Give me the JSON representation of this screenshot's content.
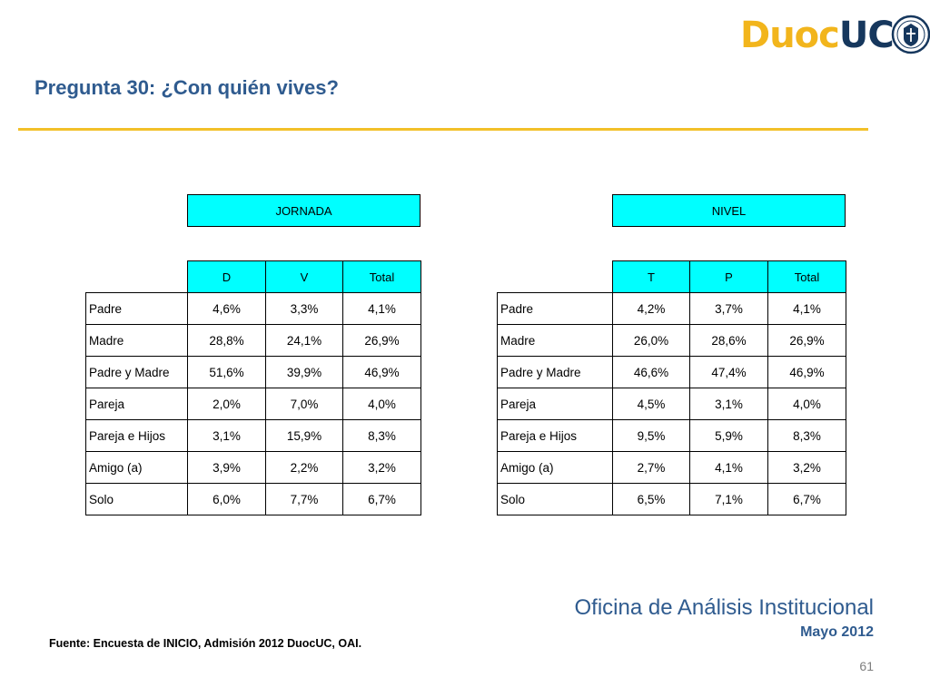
{
  "logo": {
    "text_duoc": "Duoc",
    "text_uc": "UC"
  },
  "title": "Pregunta 30: ¿Con quién vives?",
  "table_jornada": {
    "banner": "JORNADA",
    "columns": [
      "D",
      "V",
      "Total"
    ],
    "rows": [
      {
        "label": "Padre",
        "values": [
          "4,6%",
          "3,3%",
          "4,1%"
        ]
      },
      {
        "label": "Madre",
        "values": [
          "28,8%",
          "24,1%",
          "26,9%"
        ]
      },
      {
        "label": "Padre y Madre",
        "values": [
          "51,6%",
          "39,9%",
          "46,9%"
        ]
      },
      {
        "label": "Pareja",
        "values": [
          "2,0%",
          "7,0%",
          "4,0%"
        ]
      },
      {
        "label": "Pareja e Hijos",
        "values": [
          "3,1%",
          "15,9%",
          "8,3%"
        ]
      },
      {
        "label": "Amigo (a)",
        "values": [
          "3,9%",
          "2,2%",
          "3,2%"
        ]
      },
      {
        "label": "Solo",
        "values": [
          "6,0%",
          "7,7%",
          "6,7%"
        ]
      }
    ]
  },
  "table_nivel": {
    "banner": "NIVEL",
    "columns": [
      "T",
      "P",
      "Total"
    ],
    "rows": [
      {
        "label": "Padre",
        "values": [
          "4,2%",
          "3,7%",
          "4,1%"
        ]
      },
      {
        "label": "Madre",
        "values": [
          "26,0%",
          "28,6%",
          "26,9%"
        ]
      },
      {
        "label": "Padre y Madre",
        "values": [
          "46,6%",
          "47,4%",
          "46,9%"
        ]
      },
      {
        "label": "Pareja",
        "values": [
          "4,5%",
          "3,1%",
          "4,0%"
        ]
      },
      {
        "label": "Pareja e Hijos",
        "values": [
          "9,5%",
          "5,9%",
          "8,3%"
        ]
      },
      {
        "label": "Amigo (a)",
        "values": [
          "2,7%",
          "4,1%",
          "3,2%"
        ]
      },
      {
        "label": "Solo",
        "values": [
          "6,5%",
          "7,1%",
          "6,7%"
        ]
      }
    ]
  },
  "footer": {
    "office": "Oficina de Análisis Institucional",
    "date": "Mayo 2012",
    "source": "Fuente: Encuesta de INICIO, Admisión 2012 DuocUC, OAI.",
    "page_number": "61"
  },
  "colors": {
    "accent_blue": "#2f5b8f",
    "header_cyan": "#00ffff",
    "rule_gold": "#f2c029",
    "logo_gold": "#f2b51c",
    "logo_navy": "#16375d"
  }
}
